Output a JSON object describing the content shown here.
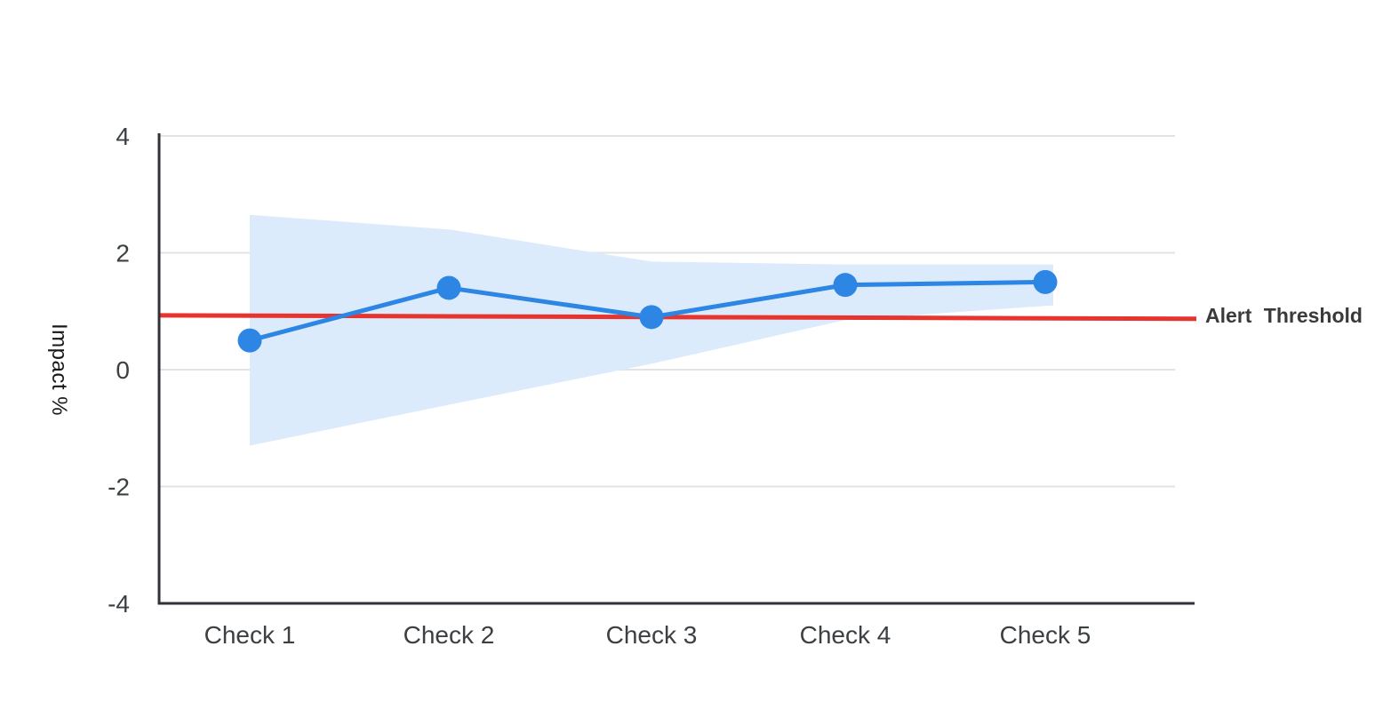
{
  "chart_data": {
    "type": "line",
    "categories": [
      "Check 1",
      "Check 2",
      "Check 3",
      "Check 4",
      "Check 5"
    ],
    "series": [
      {
        "name": "Impact",
        "values": [
          0.5,
          1.4,
          0.9,
          1.45,
          1.5
        ]
      }
    ],
    "band": {
      "name": "confidence-band",
      "upper": [
        2.65,
        2.4,
        1.85,
        1.8,
        1.8
      ],
      "lower": [
        -1.3,
        -0.6,
        0.1,
        0.85,
        1.1
      ]
    },
    "threshold": {
      "label": "Alert Threshold",
      "start": 0.93,
      "end": 0.87
    },
    "title": "",
    "xlabel": "",
    "ylabel": "Impact %",
    "ylim": [
      -4,
      4
    ],
    "yticks": [
      4,
      2,
      0,
      -2,
      -4
    ],
    "grid": true,
    "legend_position": "threshold label at right end of threshold line",
    "colors": {
      "line": "#2d85e4",
      "point": "#2d85e4",
      "band": "#dcebfc",
      "threshold": "#e8342e",
      "grid": "#e3e3e3",
      "axis": "#303238",
      "tick_text": "#3c4043",
      "ylabel_text": "#17181b",
      "threshold_text": "#3a3a3a",
      "background": "#ffffff"
    }
  }
}
